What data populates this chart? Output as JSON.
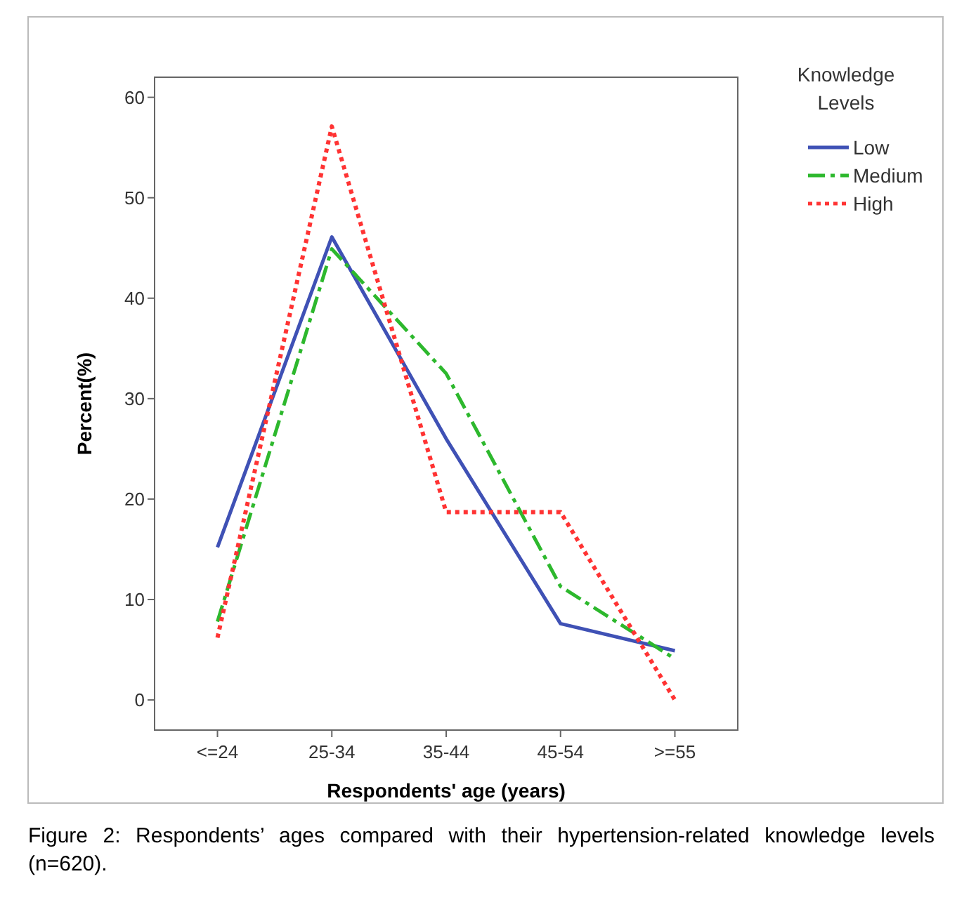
{
  "chart_data": {
    "type": "line",
    "xlabel": "Respondents' age (years)",
    "ylabel": "Percent(%)",
    "legend_title": "Knowledge Levels",
    "categories": [
      "<=24",
      "25-34",
      "35-44",
      "45-54",
      ">=55"
    ],
    "series": [
      {
        "name": "Low",
        "color": "#3f51b5",
        "line_style": "solid",
        "values": [
          15.2,
          46.1,
          26.0,
          7.6,
          4.9
        ]
      },
      {
        "name": "Medium",
        "color": "#2db82d",
        "line_style": "dashed",
        "values": [
          7.8,
          44.9,
          32.5,
          11.3,
          4.1
        ]
      },
      {
        "name": "High",
        "color": "#ff3333",
        "line_style": "dotted",
        "values": [
          6.2,
          57.1,
          18.7,
          18.7,
          0
        ]
      }
    ],
    "ylim": [
      -3,
      62
    ],
    "yticks": [
      0,
      10,
      20,
      30,
      40,
      50,
      60
    ],
    "grid": false,
    "legend": "top right",
    "marker": "none",
    "annotations": [
      "Figure 2: Respondents’ ages compared with their hypertension-related knowledge levels (n=620)."
    ]
  }
}
